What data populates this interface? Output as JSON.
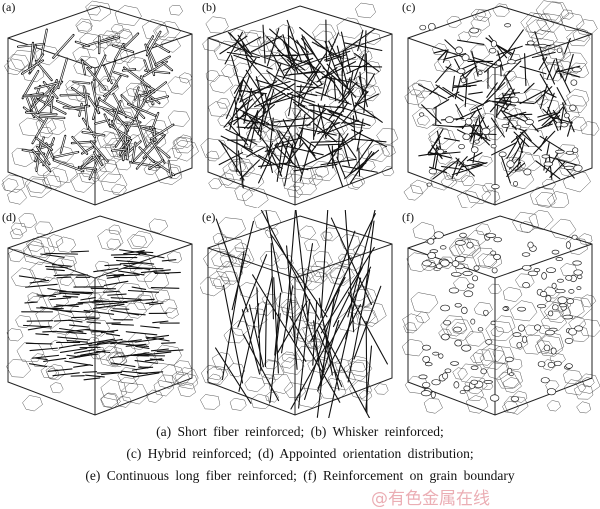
{
  "panels": [
    {
      "label": "(a)",
      "kind": "short-fiber"
    },
    {
      "label": "(b)",
      "kind": "whisker"
    },
    {
      "label": "(c)",
      "kind": "hybrid"
    },
    {
      "label": "(d)",
      "kind": "oriented"
    },
    {
      "label": "(e)",
      "kind": "long-fiber"
    },
    {
      "label": "(f)",
      "kind": "grain-boundary"
    }
  ],
  "caption": {
    "line1": "(a) Short fiber reinforced; (b) Whisker reinforced;",
    "line2": "(c) Hybrid reinforced; (d) Appointed orientation distribution;",
    "line3": "(e) Continuous long fiber reinforced; (f) Reinforcement on grain boundary"
  },
  "watermark": "@有色金属在线"
}
